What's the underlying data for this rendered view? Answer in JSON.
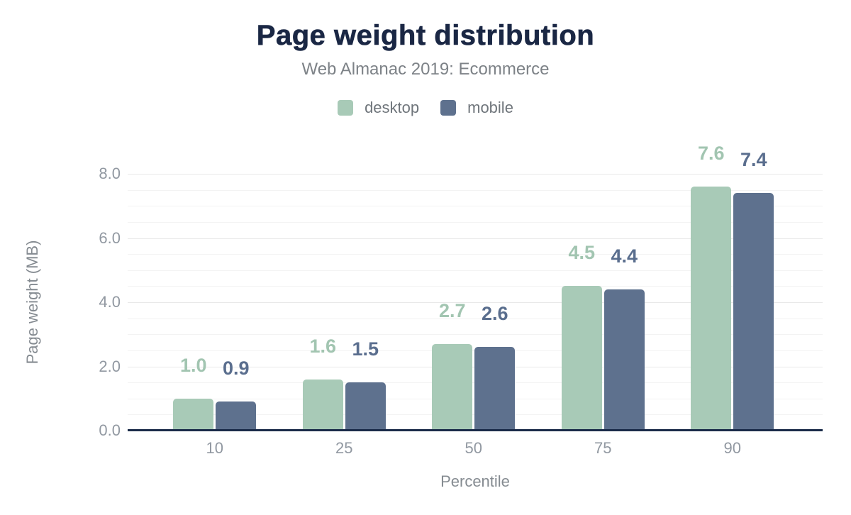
{
  "chart_data": {
    "type": "bar",
    "title": "Page weight distribution",
    "subtitle": "Web Almanac 2019: Ecommerce",
    "xlabel": "Percentile",
    "ylabel": "Page weight (MB)",
    "categories": [
      "10",
      "25",
      "50",
      "75",
      "90"
    ],
    "series": [
      {
        "name": "desktop",
        "color": "#a8cab7",
        "label_color": "#a2c5b1",
        "values": [
          1.0,
          1.6,
          2.7,
          4.5,
          7.6
        ],
        "labels": [
          "1.0",
          "1.6",
          "2.7",
          "4.5",
          "7.6"
        ]
      },
      {
        "name": "mobile",
        "color": "#5e718e",
        "label_color": "#5a6e8e",
        "values": [
          0.9,
          1.5,
          2.6,
          4.4,
          7.4
        ],
        "labels": [
          "0.9",
          "1.5",
          "2.6",
          "4.4",
          "7.4"
        ]
      }
    ],
    "y_axis": {
      "min": 0,
      "max": 8,
      "tick_interval": 2,
      "minor_tick_interval": 0.5,
      "tick_labels": [
        "0.0",
        "2.0",
        "4.0",
        "6.0",
        "8.0"
      ]
    },
    "grid": "horizontal lines every 0.5, light gray",
    "legend_position": "top-center",
    "colors": {
      "title": "#1a2744",
      "axis_line": "#1a2b49",
      "tick_label": "#9198a1",
      "axis_title": "#858b91",
      "subtitle": "#7d8287",
      "legend_label": "#6f757b",
      "grid_major": "#e9e9e9",
      "grid_minor": "#f3f3f3"
    }
  }
}
